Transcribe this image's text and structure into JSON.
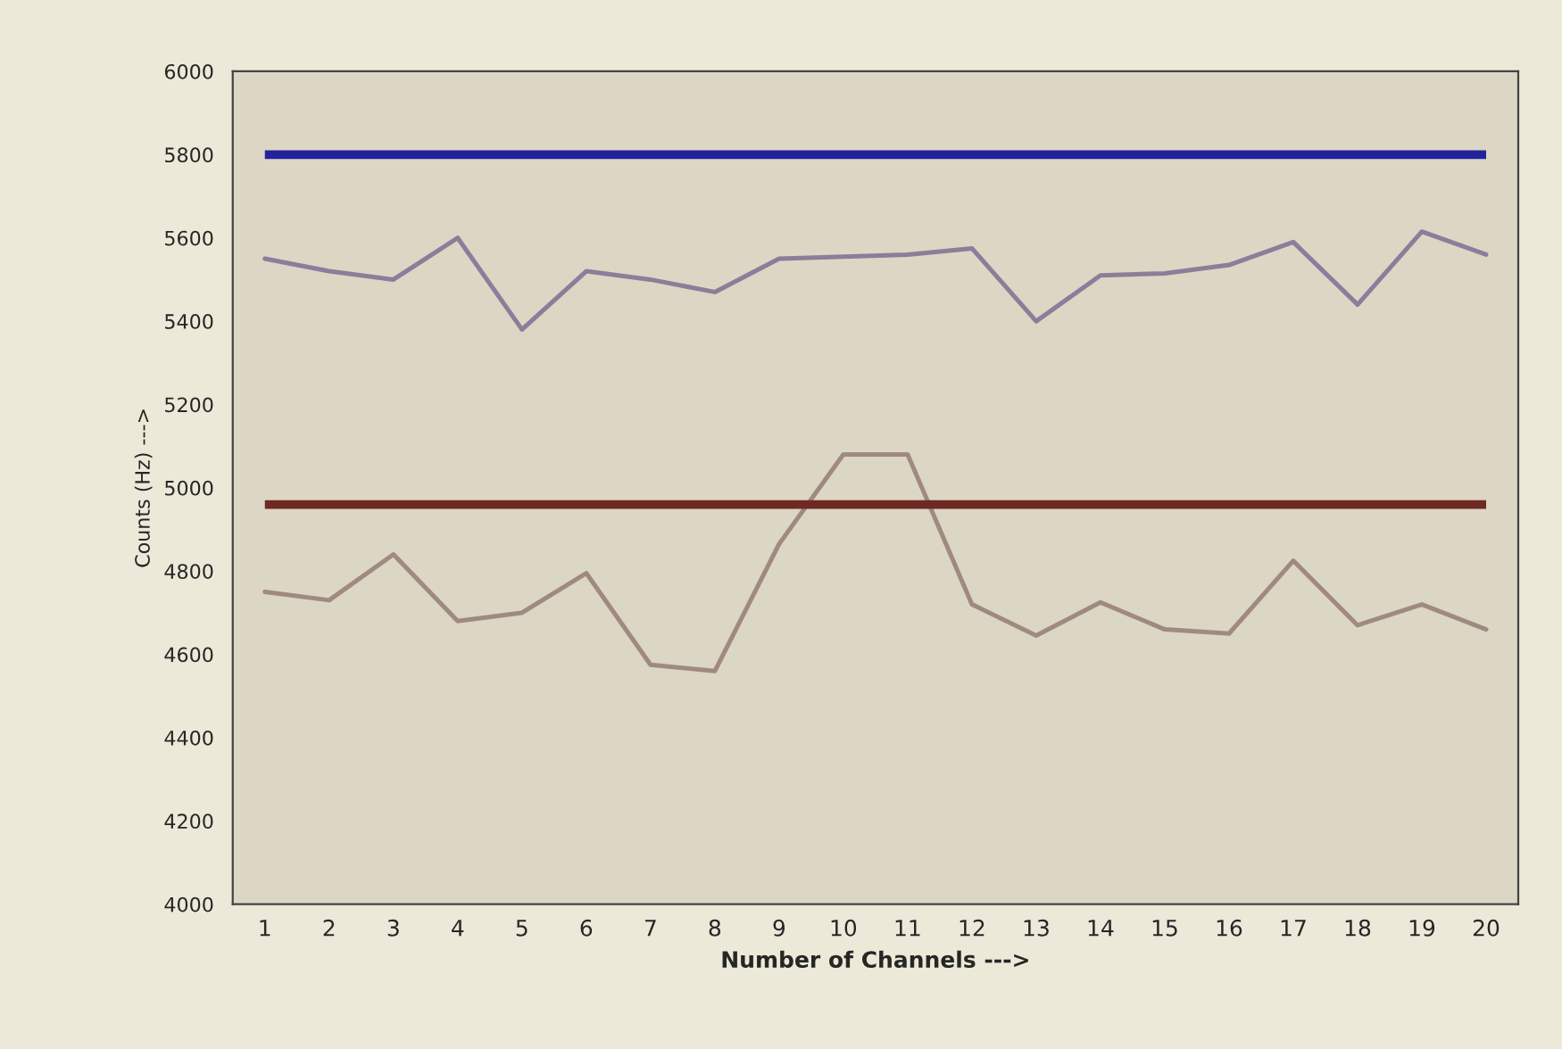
{
  "chart_data": {
    "type": "line",
    "xlabel": "Number of Channels --->",
    "ylabel": "Counts (Hz) --->",
    "categories": [
      "1",
      "2",
      "3",
      "4",
      "5",
      "6",
      "7",
      "8",
      "9",
      "10",
      "11",
      "12",
      "13",
      "14",
      "15",
      "16",
      "17",
      "18",
      "19",
      "20"
    ],
    "series": [
      {
        "color": "#8a7e9a",
        "values": [
          5550,
          5520,
          5500,
          5600,
          5380,
          5520,
          5500,
          5470,
          5550,
          5555,
          5560,
          5575,
          5400,
          5510,
          5515,
          5535,
          5590,
          5440,
          5615,
          5560
        ]
      },
      {
        "color": "#a08a80",
        "values": [
          4750,
          4730,
          4840,
          4680,
          4700,
          4795,
          4575,
          4560,
          4865,
          5080,
          5080,
          4720,
          4645,
          4725,
          4660,
          4650,
          4825,
          4670,
          4720,
          4660
        ]
      }
    ],
    "ref_lines": [
      {
        "axis": "y",
        "value": 5800,
        "color": "#22229a"
      },
      {
        "axis": "y",
        "value": 4960,
        "color": "#6e2a22"
      }
    ],
    "ylim": [
      4000,
      6000
    ],
    "yticks": [
      4000,
      4200,
      4400,
      4600,
      4800,
      5000,
      5200,
      5400,
      5600,
      5800,
      6000
    ],
    "grid": false,
    "legend": false,
    "marker": "none",
    "line_style": "solid"
  }
}
